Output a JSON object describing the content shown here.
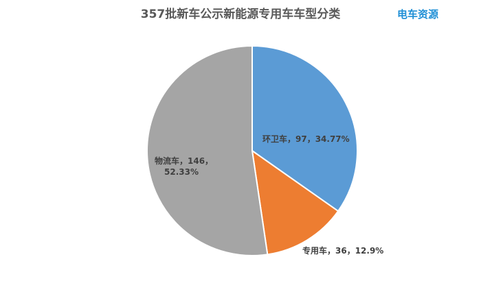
{
  "brand": {
    "logo_text": "电车资源"
  },
  "chart_data": {
    "type": "pie",
    "title": "357批新车公示新能源专用车车型分类",
    "slices": [
      {
        "name": "环卫车",
        "value": 97,
        "percent": "34.77%",
        "label_lines": [
          "环卫车，97，34.77%"
        ],
        "color": "#5b9bd5"
      },
      {
        "name": "专用车",
        "value": 36,
        "percent": "12.9%",
        "label_lines": [
          "专用车，36，12.9%"
        ],
        "color": "#ed7d31"
      },
      {
        "name": "物流车",
        "value": 146,
        "percent": "52.33%",
        "label_lines": [
          "物流车，146，",
          "52.33%"
        ],
        "color": "#a5a5a5"
      }
    ]
  }
}
